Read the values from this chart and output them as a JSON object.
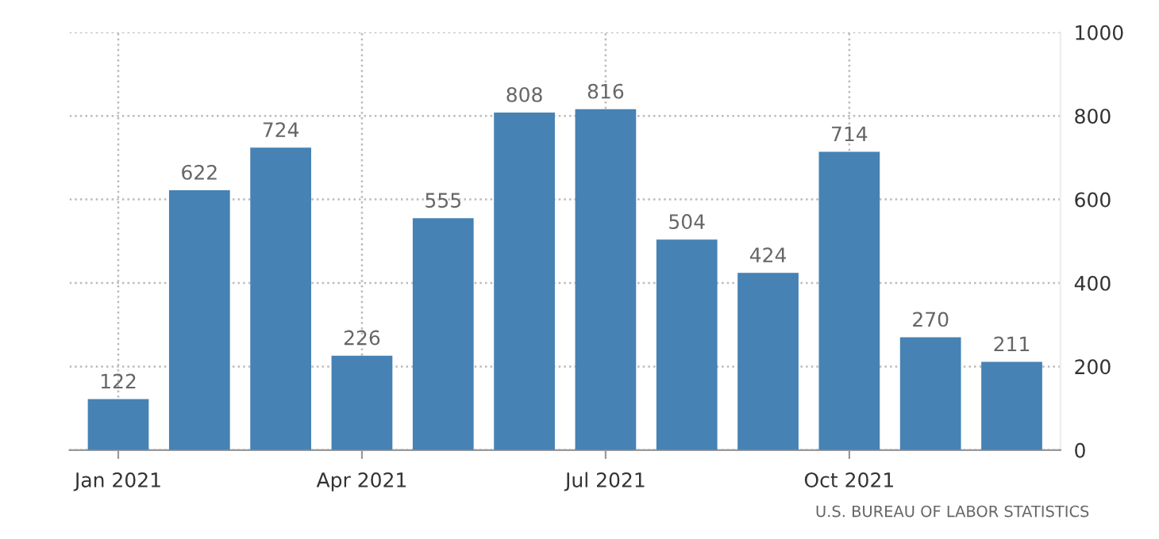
{
  "chart_data": {
    "type": "bar",
    "categories": [
      "Jan 2021",
      null,
      null,
      "Apr 2021",
      null,
      null,
      "Jul 2021",
      null,
      null,
      "Oct 2021",
      null,
      null
    ],
    "values": [
      122,
      622,
      724,
      226,
      555,
      808,
      816,
      504,
      424,
      714,
      270,
      211
    ],
    "color": "#4682b4",
    "ylim": [
      0,
      1000
    ],
    "yticks": [
      0,
      200,
      400,
      600,
      800,
      1000
    ],
    "grid": true,
    "data_labels": true,
    "annotations": [
      "U.S. BUREAU OF LABOR STATISTICS"
    ]
  }
}
